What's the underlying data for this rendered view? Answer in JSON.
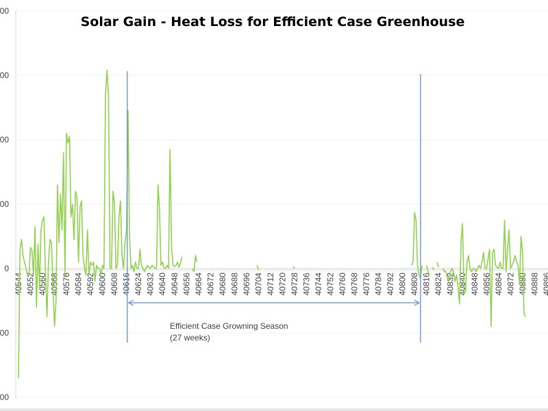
{
  "chart_data": {
    "type": "line",
    "title": "Solar Gain - Heat Loss for Efficient Case Greenhouse",
    "xlabel": "",
    "ylabel": "",
    "y_units_note": "y values expressed in gridline steps (tick labels truncated at left edge)",
    "ylim": [
      -2,
      4
    ],
    "yticks": [
      {
        "value": 4,
        "label": "00"
      },
      {
        "value": 3,
        "label": "00"
      },
      {
        "value": 2,
        "label": "00"
      },
      {
        "value": 1,
        "label": "00"
      },
      {
        "value": 0,
        "label": "0"
      },
      {
        "value": -1,
        "label": "00"
      },
      {
        "value": -2,
        "label": "00"
      }
    ],
    "xlim": [
      40544,
      40897
    ],
    "xtick_labels": [
      "40544",
      "40552",
      "40560",
      "40568",
      "40576",
      "40584",
      "40592",
      "40600",
      "40608",
      "40616",
      "40624",
      "40632",
      "40640",
      "40648",
      "40656",
      "40664",
      "40672",
      "40680",
      "40688",
      "40696",
      "40704",
      "40712",
      "40720",
      "40728",
      "40736",
      "40744",
      "40752",
      "40760",
      "40768",
      "40776",
      "40784",
      "40792",
      "40800",
      "40808",
      "40816",
      "40824",
      "40832",
      "40840",
      "40848",
      "40856",
      "40864",
      "40872",
      "40880",
      "40888",
      "40896"
    ],
    "grid": true,
    "legend": "none",
    "series": [
      {
        "name": "Solar Gain - Heat Loss",
        "color": "#92d050",
        "points": [
          [
            40544,
            -1.7
          ],
          [
            40545,
            0.3
          ],
          [
            40546,
            0.45
          ],
          [
            40547,
            0.2
          ],
          [
            40548,
            0.1
          ],
          [
            40549,
            0.0
          ],
          [
            40550,
            -0.1
          ],
          [
            40551,
            -0.1
          ],
          [
            40552,
            0.33
          ],
          [
            40553,
            0.28
          ],
          [
            40554,
            -0.1
          ],
          [
            40555,
            0.65
          ],
          [
            40556,
            -0.6
          ],
          [
            40557,
            0.38
          ],
          [
            40558,
            -0.3
          ],
          [
            40559,
            0.6
          ],
          [
            40560,
            0.75
          ],
          [
            40561,
            0.8
          ],
          [
            40562,
            -0.05
          ],
          [
            40563,
            -0.75
          ],
          [
            40564,
            0.1
          ],
          [
            40565,
            0.45
          ],
          [
            40566,
            0.4
          ],
          [
            40567,
            -0.3
          ],
          [
            40568,
            -0.9
          ],
          [
            40569,
            -0.5
          ],
          [
            40570,
            1.3
          ],
          [
            40571,
            0.4
          ],
          [
            40572,
            1.15
          ],
          [
            40573,
            0.6
          ],
          [
            40574,
            1.8
          ],
          [
            40575,
            -0.1
          ],
          [
            40576,
            2.1
          ],
          [
            40577,
            1.95
          ],
          [
            40578,
            2.05
          ],
          [
            40579,
            0.8
          ],
          [
            40580,
            1.0
          ],
          [
            40581,
            0.45
          ],
          [
            40582,
            1.2
          ],
          [
            40583,
            1.1
          ],
          [
            40584,
            0.1
          ],
          [
            40585,
            0.95
          ],
          [
            40586,
            1.05
          ],
          [
            40587,
            0.2
          ],
          [
            40588,
            0.0
          ],
          [
            40589,
            -0.1
          ],
          [
            40590,
            0.6
          ],
          [
            40591,
            -0.1
          ],
          [
            40592,
            0.1
          ],
          [
            40593,
            0.05
          ],
          [
            40594,
            0.1
          ],
          [
            40595,
            -0.2
          ],
          [
            40596,
            0.05
          ],
          [
            40597,
            0.0
          ],
          [
            40598,
            0.0
          ],
          [
            40599,
            -0.1
          ],
          [
            40600,
            0.05
          ],
          [
            40601,
            0.0
          ],
          [
            40602,
            2.7
          ],
          [
            40603,
            3.08
          ],
          [
            40604,
            2.7
          ],
          [
            40605,
            0.0
          ],
          [
            40606,
            0.0
          ],
          [
            40607,
            1.2
          ],
          [
            40608,
            1.0
          ],
          [
            40609,
            0.0
          ],
          [
            40610,
            0.05
          ],
          [
            40611,
            0.8
          ],
          [
            40612,
            1.05
          ],
          [
            40613,
            0.2
          ],
          [
            40614,
            0.0
          ],
          [
            40615,
            0.4
          ],
          [
            40616,
            0.6
          ],
          [
            40617,
            2.45
          ],
          [
            40618,
            0.5
          ],
          [
            40619,
            0.0
          ],
          [
            40620,
            0.05
          ],
          [
            40621,
            -0.05
          ],
          [
            40622,
            0.1
          ],
          [
            40623,
            0.0
          ],
          [
            40624,
            0.0
          ],
          [
            40625,
            0.3
          ],
          [
            40626,
            0.05
          ],
          [
            40627,
            0.0
          ],
          [
            40628,
            -0.05
          ],
          [
            40629,
            0.0
          ],
          [
            40630,
            0.05
          ],
          [
            40631,
            0.02
          ],
          [
            40632,
            0.0
          ],
          [
            40633,
            0.05
          ],
          [
            40634,
            0.03
          ],
          [
            40635,
            0.0
          ],
          [
            40636,
            0.0
          ],
          [
            40637,
            1.3
          ],
          [
            40638,
            0.9
          ],
          [
            40639,
            0.05
          ],
          [
            40640,
            0.1
          ],
          [
            40641,
            0.0
          ],
          [
            40642,
            0.0
          ],
          [
            40643,
            0.05
          ],
          [
            40644,
            0.0
          ],
          [
            40645,
            1.85
          ],
          [
            40646,
            0.35
          ],
          [
            40647,
            0.05
          ],
          [
            40648,
            0.03
          ],
          [
            40649,
            0.05
          ],
          [
            40650,
            0.1
          ],
          [
            40651,
            0.02
          ],
          [
            40652,
            0.08
          ],
          [
            40653,
            0.18
          ]
        ],
        "segments_note": "line has gaps (missing data) through most of the growing season; isolated short segments near 40660, 40704, 40728; resumes near 40806",
        "points_late": [
          [
            40806,
            0.05
          ],
          [
            40807,
            0.1
          ],
          [
            40808,
            0.87
          ],
          [
            40809,
            0.75
          ],
          [
            40810,
            0.05
          ],
          [
            40811,
            -0.1
          ],
          [
            40812,
            -0.15
          ],
          [
            40813,
            0.05
          ],
          [
            40816,
            0.05
          ],
          [
            40817,
            -0.05
          ],
          [
            40818,
            -0.1
          ],
          [
            40820,
            0.02
          ],
          [
            40821,
            -0.02
          ],
          [
            40823,
            0.1
          ],
          [
            40824,
            0.02
          ],
          [
            40827,
            0.0
          ],
          [
            40828,
            -0.05
          ],
          [
            40829,
            -0.05
          ],
          [
            40830,
            -0.15
          ],
          [
            40831,
            -0.2
          ],
          [
            40832,
            -0.05
          ],
          [
            40833,
            0.0
          ],
          [
            40834,
            -0.05
          ],
          [
            40835,
            -0.2
          ],
          [
            40836,
            -0.1
          ],
          [
            40837,
            -0.3
          ],
          [
            40838,
            -0.55
          ],
          [
            40839,
            0.4
          ],
          [
            40840,
            0.7
          ],
          [
            40841,
            -0.4
          ],
          [
            40842,
            -0.35
          ],
          [
            40843,
            0.1
          ],
          [
            40844,
            0.2
          ],
          [
            40845,
            0.0
          ],
          [
            40846,
            -0.05
          ],
          [
            40847,
            0.0
          ],
          [
            40848,
            0.0
          ],
          [
            40849,
            -0.05
          ],
          [
            40850,
            0.0
          ],
          [
            40851,
            0.05
          ],
          [
            40852,
            0.0
          ],
          [
            40853,
            0.1
          ],
          [
            40854,
            0.25
          ],
          [
            40855,
            0.0
          ],
          [
            40856,
            0.0
          ],
          [
            40857,
            0.15
          ],
          [
            40858,
            0.3
          ],
          [
            40859,
            -0.9
          ],
          [
            40860,
            0.25
          ],
          [
            40861,
            0.3
          ],
          [
            40862,
            0.05
          ],
          [
            40863,
            0.02
          ],
          [
            40864,
            0.0
          ],
          [
            40865,
            0.1
          ],
          [
            40866,
            0.0
          ],
          [
            40867,
            0.0
          ],
          [
            40868,
            0.75
          ],
          [
            40869,
            -0.05
          ],
          [
            40870,
            0.3
          ],
          [
            40871,
            0.6
          ],
          [
            40872,
            0.0
          ],
          [
            40873,
            0.05
          ],
          [
            40874,
            0.1
          ],
          [
            40875,
            0.2
          ],
          [
            40876,
            0.1
          ],
          [
            40877,
            0.05
          ],
          [
            40878,
            -0.25
          ],
          [
            40879,
            0.5
          ],
          [
            40880,
            0.25
          ],
          [
            40881,
            -0.7
          ],
          [
            40882,
            -0.75
          ]
        ]
      }
    ],
    "annotations": {
      "season_label_line1": "Efficient Case Growning Season",
      "season_label_line2": "(27 weeks)",
      "season_start_x": 40616.5,
      "season_end_x": 40812,
      "marker_color": "#5b8fd0"
    }
  }
}
